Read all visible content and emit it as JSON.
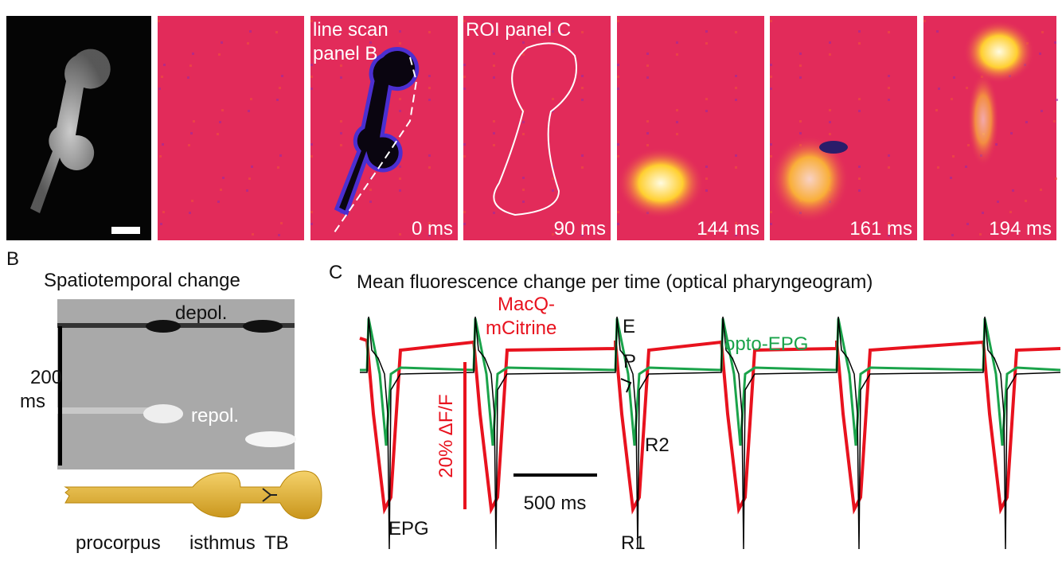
{
  "panel_a": {
    "overlays": [
      "line scan",
      "panel B",
      "ROI panel C"
    ],
    "times": [
      "0 ms",
      "90 ms",
      "144 ms",
      "161 ms",
      "194 ms"
    ]
  },
  "panel_b": {
    "label": "B",
    "title": "Spatiotemporal change",
    "depol": "depol.",
    "repol": "repol.",
    "scale": [
      "200",
      "ms"
    ],
    "regions": [
      "procorpus",
      "isthmus",
      "TB"
    ]
  },
  "panel_c": {
    "label": "C",
    "title": "Mean fluorescence change per time (optical pharyngeogram)",
    "series": [
      "MacQ-",
      "mCitrine",
      "opto-EPG",
      "EPG"
    ],
    "markers": [
      "E",
      "P",
      "R2",
      "R1"
    ],
    "scale_y": "20% ΔF/F",
    "scale_x": "500 ms"
  }
}
